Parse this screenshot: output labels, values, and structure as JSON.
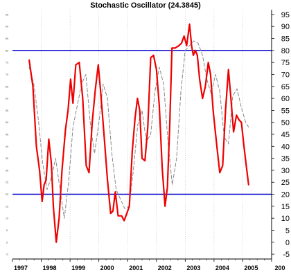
{
  "chart_data": {
    "type": "line",
    "title": "Stochastic Oscillator (24.3845)",
    "xlabel": "",
    "ylabel": "",
    "xlim": [
      1997,
      2006
    ],
    "ylim": [
      -7,
      97
    ],
    "x_tick_labels": [
      "1997",
      "1998",
      "1999",
      "2000",
      "2001",
      "2002",
      "2003",
      "2004",
      "2005",
      "200"
    ],
    "y_tick_labels": [
      "-5",
      "0",
      "5",
      "10",
      "15",
      "20",
      "25",
      "30",
      "35",
      "40",
      "45",
      "50",
      "55",
      "60",
      "65",
      "70",
      "75",
      "80",
      "85",
      "90",
      "95"
    ],
    "reference_lines": [
      80,
      20
    ],
    "reference_color": "#0000cc",
    "grid": "vertical-dotted",
    "series": [
      {
        "style": "solid",
        "color": "#ee0000",
        "x": [
          1997.58,
          1997.71,
          1997.83,
          1997.94,
          1998.03,
          1998.1,
          1998.17,
          1998.26,
          1998.35,
          1998.42,
          1998.52,
          1998.62,
          1998.72,
          1998.84,
          1998.93,
          1999.02,
          1999.1,
          1999.2,
          1999.32,
          1999.44,
          1999.56,
          1999.66,
          1999.77,
          1999.88,
          1999.98,
          2000.06,
          2000.18,
          2000.3,
          2000.41,
          2000.49,
          2000.57,
          2000.67,
          2000.79,
          2000.88,
          2000.97,
          2001.06,
          2001.16,
          2001.26,
          2001.34,
          2001.42,
          2001.5,
          2001.6,
          2001.7,
          2001.8,
          2001.9,
          2002.0,
          2002.1,
          2002.2,
          2002.3,
          2002.38,
          2002.46,
          2002.54,
          2002.65,
          2002.78,
          2002.87,
          2002.96,
          2003.05,
          2003.15,
          2003.22,
          2003.28,
          2003.35,
          2003.42,
          2003.5,
          2003.6,
          2003.7,
          2003.8,
          2003.88,
          2003.97,
          2004.1,
          2004.2,
          2004.3,
          2004.4,
          2004.5,
          2004.58,
          2004.68,
          2004.78,
          2004.87,
          2004.95,
          2005.04,
          2005.12,
          2005.2
        ],
        "y": [
          76,
          65,
          40,
          30,
          17,
          24,
          26,
          43,
          33,
          15,
          0,
          10,
          30,
          47,
          55,
          68,
          58,
          74,
          75,
          60,
          32,
          29,
          50,
          64,
          74,
          63,
          45,
          26,
          12,
          13,
          21,
          11,
          11,
          9,
          12,
          15,
          38,
          52,
          60,
          55,
          35,
          34,
          48,
          77,
          78,
          72,
          57,
          31,
          15,
          23,
          48,
          81,
          81,
          82,
          83,
          86,
          82,
          91,
          82,
          78,
          80,
          78,
          68,
          60,
          65,
          75,
          70,
          55,
          40,
          29,
          32,
          55,
          72,
          61,
          46,
          53,
          51,
          50,
          40,
          32,
          24
        ]
      },
      {
        "style": "dashed",
        "color": "#888888",
        "x": [
          1997.58,
          1997.74,
          1997.9,
          1998.05,
          1998.2,
          1998.35,
          1998.5,
          1998.65,
          1998.8,
          1998.95,
          1999.1,
          1999.25,
          1999.4,
          1999.55,
          1999.7,
          1999.85,
          2000.0,
          2000.15,
          2000.3,
          2000.45,
          2000.6,
          2000.75,
          2000.9,
          2001.05,
          2001.2,
          2001.35,
          2001.5,
          2001.65,
          2001.8,
          2001.95,
          2002.1,
          2002.25,
          2002.4,
          2002.55,
          2002.7,
          2002.85,
          2003.0,
          2003.15,
          2003.3,
          2003.45,
          2003.6,
          2003.75,
          2003.9,
          2004.05,
          2004.2,
          2004.35,
          2004.5,
          2004.65,
          2004.8,
          2004.95,
          2005.1,
          2005.2
        ],
        "y": [
          73,
          66,
          51,
          33,
          22,
          27,
          35,
          22,
          10,
          25,
          48,
          57,
          66,
          70,
          50,
          37,
          50,
          66,
          60,
          37,
          22,
          18,
          14,
          15,
          30,
          49,
          55,
          42,
          45,
          63,
          73,
          66,
          42,
          24,
          35,
          63,
          80,
          82,
          84,
          83,
          78,
          68,
          62,
          70,
          63,
          44,
          41,
          61,
          64,
          56,
          50,
          48
        ]
      }
    ]
  }
}
